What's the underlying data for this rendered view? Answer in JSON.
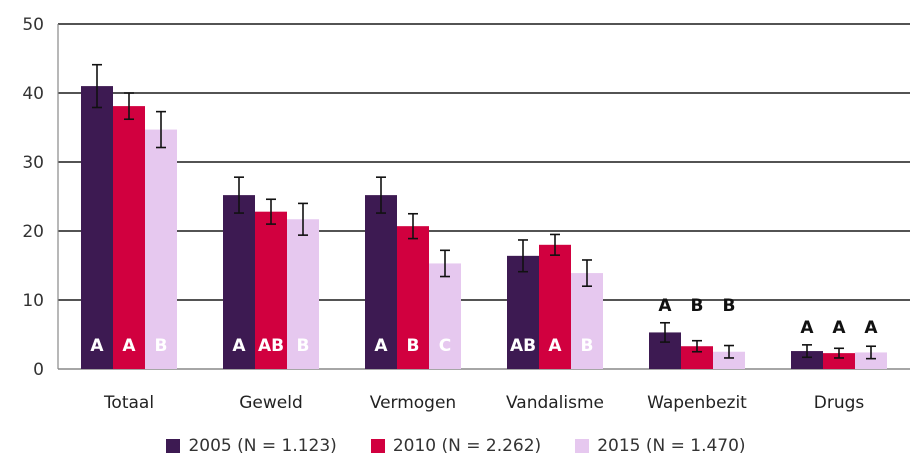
{
  "chart_data": {
    "type": "bar",
    "title": "",
    "xlabel": "",
    "ylabel": "",
    "ylim": [
      0,
      50
    ],
    "yticks": [
      0,
      10,
      20,
      30,
      40,
      50
    ],
    "grid": true,
    "legend_position": "bottom",
    "categories": [
      "Totaal",
      "Geweld",
      "Vermogen",
      "Vandalisme",
      "Wapenbezit",
      "Drugs"
    ],
    "series": [
      {
        "name": "2005 (N = 1.123)",
        "color": "#3d1a52",
        "values": [
          41.0,
          25.2,
          25.2,
          16.4,
          5.3,
          2.6
        ],
        "error": [
          3.1,
          2.6,
          2.6,
          2.3,
          1.4,
          0.9
        ],
        "labels": [
          "A",
          "A",
          "A",
          "AB",
          "A",
          "A"
        ]
      },
      {
        "name": "2010 (N = 2.262)",
        "color": "#d1003f",
        "values": [
          38.1,
          22.8,
          20.7,
          18.0,
          3.3,
          2.3
        ],
        "error": [
          1.9,
          1.8,
          1.8,
          1.5,
          0.8,
          0.7
        ],
        "labels": [
          "A",
          "AB",
          "B",
          "A",
          "B",
          "A"
        ]
      },
      {
        "name": "2015 (N = 1.470)",
        "color": "#e6c8ef",
        "values": [
          34.7,
          21.7,
          15.3,
          13.9,
          2.5,
          2.4
        ],
        "error": [
          2.6,
          2.3,
          1.9,
          1.9,
          0.9,
          0.9
        ],
        "labels": [
          "B",
          "B",
          "C",
          "B",
          "B",
          "A"
        ]
      }
    ]
  }
}
